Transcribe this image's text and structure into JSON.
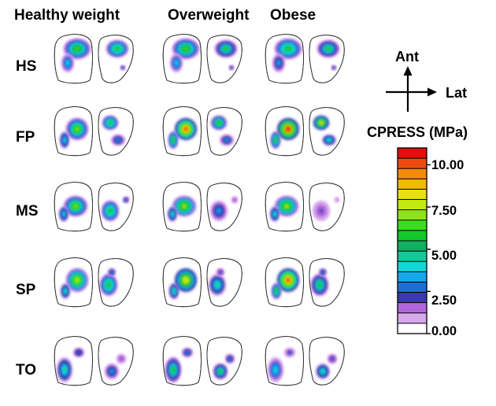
{
  "figure": {
    "columns": [
      "Healthy weight",
      "Overweight",
      "Obese"
    ],
    "rows": [
      "HS",
      "FP",
      "MS",
      "SP",
      "TO"
    ],
    "orientation": {
      "anterior": "Ant",
      "lateral": "Lat"
    },
    "colorbar": {
      "title": "CPRESS (MPa)",
      "ticks": [
        "10.00",
        "7.50",
        "5.00",
        "2.50",
        "0.00"
      ],
      "tick_values": [
        10,
        7.5,
        5,
        2.5,
        0
      ],
      "min": 0,
      "max": 11,
      "colors": [
        "#ffffff",
        "#d8a8ec",
        "#b266dc",
        "#3a3aa8",
        "#1f6dd6",
        "#15a8e8",
        "#12d6d6",
        "#12c99a",
        "#10b060",
        "#12c82a",
        "#3ddc1c",
        "#8ce414",
        "#c2e812",
        "#e8e010",
        "#f4b808",
        "#f48a0a",
        "#ee4a0e",
        "#e01010"
      ]
    },
    "maps": [
      [
        {
          "medial_peak": 6.5,
          "lateral_peak": 6.0
        },
        {
          "medial_peak": 6.5,
          "lateral_peak": 5.5
        },
        {
          "medial_peak": 6.0,
          "lateral_peak": 5.5
        }
      ],
      [
        {
          "medial_peak": 7.0,
          "lateral_peak": 6.0
        },
        {
          "medial_peak": 10.5,
          "lateral_peak": 6.5
        },
        {
          "medial_peak": 11.0,
          "lateral_peak": 8.5
        }
      ],
      [
        {
          "medial_peak": 7.0,
          "lateral_peak": 6.0
        },
        {
          "medial_peak": 7.5,
          "lateral_peak": 3.5
        },
        {
          "medial_peak": 7.5,
          "lateral_peak": 2.0
        }
      ],
      [
        {
          "medial_peak": 8.0,
          "lateral_peak": 6.0
        },
        {
          "medial_peak": 8.5,
          "lateral_peak": 4.5
        },
        {
          "medial_peak": 10.5,
          "lateral_peak": 5.5
        }
      ],
      [
        {
          "medial_peak": 4.5,
          "lateral_peak": 3.5
        },
        {
          "medial_peak": 5.5,
          "lateral_peak": 5.5
        },
        {
          "medial_peak": 4.0,
          "lateral_peak": 4.5
        }
      ]
    ]
  }
}
